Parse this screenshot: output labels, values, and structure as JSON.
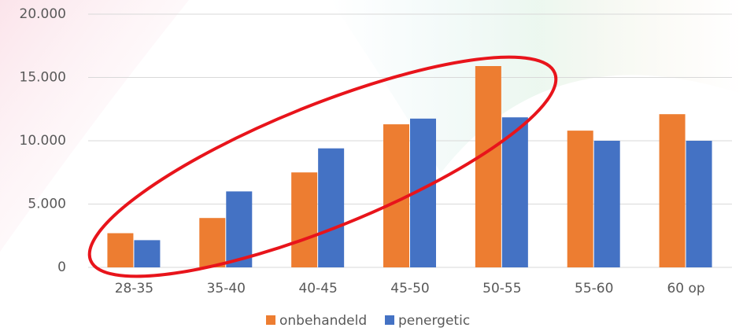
{
  "chart_data": {
    "type": "bar",
    "categories": [
      "28-35",
      "35-40",
      "40-45",
      "45-50",
      "50-55",
      "55-60",
      "60 op"
    ],
    "series": [
      {
        "name": "onbehandeld",
        "color": "#ed7d31",
        "values": [
          2700,
          3900,
          7500,
          11300,
          15900,
          10800,
          12100
        ]
      },
      {
        "name": "penergetic",
        "color": "#4472c4",
        "values": [
          2150,
          6000,
          9400,
          11750,
          11850,
          10000,
          10000
        ]
      }
    ],
    "ylim": [
      0,
      20000
    ],
    "yticks": [
      0,
      {
        "value": 5000,
        "label": "5.000"
      },
      {
        "value": 10000,
        "label": "10.000"
      },
      {
        "value": 15000,
        "label": "15.000"
      },
      {
        "value": 20000,
        "label": "20.000"
      }
    ],
    "grid": true,
    "legend": "bottom"
  }
}
